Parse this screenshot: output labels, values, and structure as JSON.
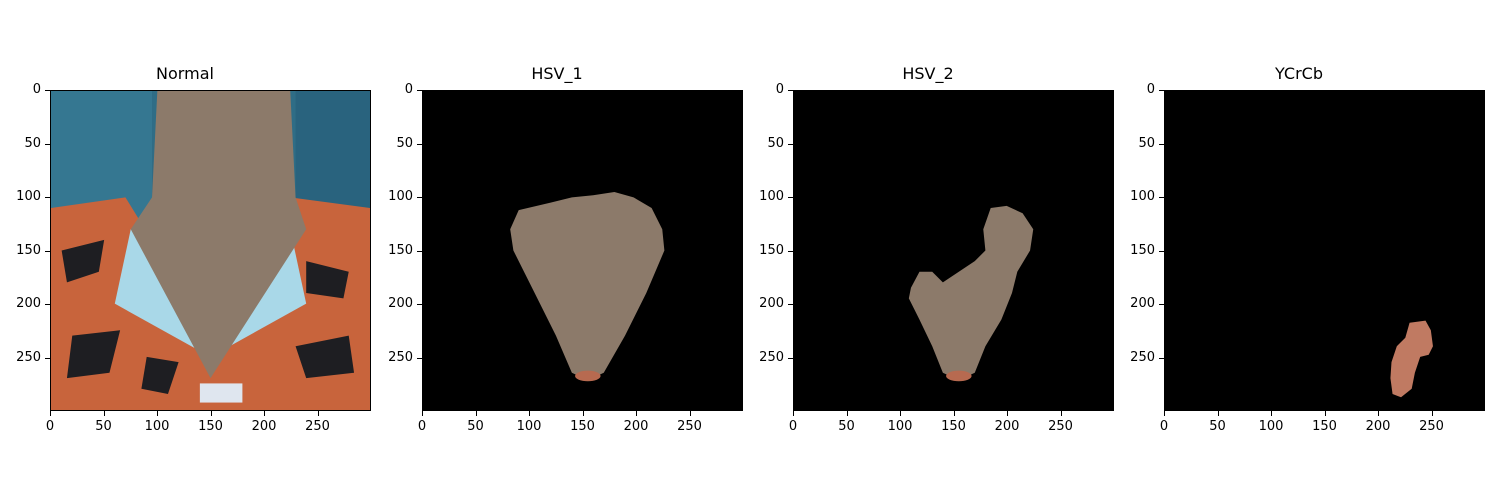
{
  "panels": [
    {
      "title": "Normal"
    },
    {
      "title": "HSV_1"
    },
    {
      "title": "HSV_2"
    },
    {
      "title": "YCrCb"
    }
  ],
  "axes": {
    "x_ticks": [
      "0",
      "50",
      "100",
      "150",
      "200",
      "250"
    ],
    "y_ticks": [
      "0",
      "50",
      "100",
      "150",
      "200",
      "250"
    ],
    "xlim": [
      0,
      299
    ],
    "ylim": [
      0,
      299
    ]
  },
  "colors": {
    "background": "#000000",
    "skin": "#8c7a6a",
    "shirt_orange": "#c8643c",
    "collar_light": "#a9d8e8",
    "curtain_blue": "#2f6d86"
  }
}
